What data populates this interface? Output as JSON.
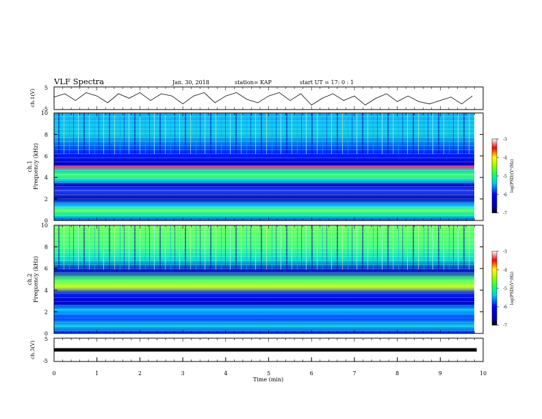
{
  "header": {
    "title": "VLF Spectra",
    "date": "Jan. 30, 2018",
    "station": "station= KAP",
    "start": "start  UT =   17: 0  : 1"
  },
  "chart_data": [
    {
      "type": "line",
      "ylabel": "ch.1(V)",
      "yticks": [
        "5",
        "-5"
      ],
      "ylim": [
        -5,
        5
      ],
      "xlim": [
        0,
        10
      ],
      "x": [
        0,
        0.25,
        0.5,
        0.75,
        1,
        1.25,
        1.5,
        1.75,
        2,
        2.25,
        2.5,
        2.75,
        3,
        3.25,
        3.5,
        3.75,
        4,
        4.25,
        4.5,
        4.75,
        5,
        5.25,
        5.5,
        5.75,
        6,
        6.25,
        6.5,
        6.75,
        7,
        7.25,
        7.5,
        7.75,
        8,
        8.25,
        8.5,
        8.75,
        9,
        9.25,
        9.5,
        9.75
      ],
      "y": [
        0.5,
        2,
        -1,
        2.5,
        1,
        -2,
        2,
        0,
        2.5,
        -1,
        2,
        1,
        -2.5,
        1,
        2.5,
        -2,
        1,
        2.5,
        -0.5,
        -2,
        1,
        2.5,
        -1,
        2,
        -3,
        0,
        2,
        -1,
        1,
        -3,
        0,
        2,
        -1.5,
        1,
        -1.5,
        -2.5,
        -1,
        0.5,
        -2.5,
        1
      ]
    },
    {
      "type": "heatmap",
      "ylabel": "ch.1",
      "ylabel2": "Frequency (kHz)",
      "ylim": [
        0,
        10
      ],
      "yticks": [
        "0",
        "2",
        "4",
        "6",
        "8",
        "10"
      ],
      "colorbar_label": "log(PSD)(V²/Hz)",
      "colorbar_ticks": [
        "-3",
        "-4",
        "-5",
        "-6",
        "-7"
      ],
      "clim": [
        -7,
        -3
      ]
    },
    {
      "type": "heatmap",
      "ylabel": "ch.2",
      "ylabel2": "Frequency (kHz)",
      "ylim": [
        0,
        10
      ],
      "yticks": [
        "0",
        "2",
        "4",
        "6",
        "8",
        "10"
      ],
      "colorbar_label": "log(PSD)(V²/Hz)",
      "colorbar_ticks": [
        "-3",
        "-4",
        "-5",
        "-6",
        "-7"
      ],
      "clim": [
        -7,
        -3
      ]
    },
    {
      "type": "line",
      "ylabel": "ch.3(V)",
      "yticks": [
        "5",
        "-5"
      ],
      "ylim": [
        -5,
        5
      ],
      "x": [
        0,
        9.85
      ],
      "y": [
        0,
        0
      ],
      "xlabel": "Time (min)",
      "xticks": [
        "0",
        "1",
        "2",
        "3",
        "4",
        "5",
        "6",
        "7",
        "8",
        "9",
        "10"
      ],
      "xlim": [
        0,
        10
      ]
    }
  ]
}
